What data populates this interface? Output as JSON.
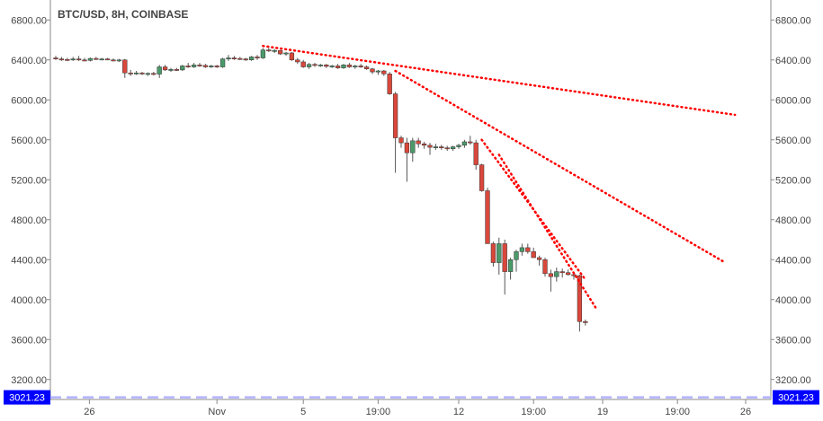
{
  "chart_data": {
    "type": "candlestick",
    "title": "BTC/USD, 8H, COINBASE",
    "ylim": [
      3000,
      7000
    ],
    "y_ticks": [
      "3200.00",
      "3600.00",
      "4000.00",
      "4400.00",
      "4800.00",
      "5200.00",
      "5600.00",
      "6000.00",
      "6400.00",
      "6800.00"
    ],
    "x_ticks": [
      "26",
      "Nov",
      "5",
      "19:00",
      "12",
      "19:00",
      "19",
      "19:00",
      "26"
    ],
    "candles": [
      {
        "o": 6420,
        "h": 6440,
        "l": 6400,
        "c": 6410
      },
      {
        "o": 6410,
        "h": 6430,
        "l": 6390,
        "c": 6405
      },
      {
        "o": 6405,
        "h": 6420,
        "l": 6390,
        "c": 6400
      },
      {
        "o": 6400,
        "h": 6430,
        "l": 6390,
        "c": 6410
      },
      {
        "o": 6410,
        "h": 6440,
        "l": 6390,
        "c": 6400
      },
      {
        "o": 6400,
        "h": 6420,
        "l": 6385,
        "c": 6395
      },
      {
        "o": 6395,
        "h": 6425,
        "l": 6385,
        "c": 6415
      },
      {
        "o": 6415,
        "h": 6430,
        "l": 6400,
        "c": 6405
      },
      {
        "o": 6405,
        "h": 6420,
        "l": 6395,
        "c": 6410
      },
      {
        "o": 6410,
        "h": 6420,
        "l": 6400,
        "c": 6400
      },
      {
        "o": 6400,
        "h": 6415,
        "l": 6385,
        "c": 6395
      },
      {
        "o": 6395,
        "h": 6410,
        "l": 6380,
        "c": 6400
      },
      {
        "o": 6400,
        "h": 6410,
        "l": 6220,
        "c": 6270
      },
      {
        "o": 6270,
        "h": 6300,
        "l": 6240,
        "c": 6265
      },
      {
        "o": 6265,
        "h": 6290,
        "l": 6250,
        "c": 6270
      },
      {
        "o": 6270,
        "h": 6280,
        "l": 6250,
        "c": 6260
      },
      {
        "o": 6260,
        "h": 6275,
        "l": 6240,
        "c": 6265
      },
      {
        "o": 6265,
        "h": 6280,
        "l": 6245,
        "c": 6258
      },
      {
        "o": 6258,
        "h": 6350,
        "l": 6220,
        "c": 6330
      },
      {
        "o": 6330,
        "h": 6350,
        "l": 6290,
        "c": 6300
      },
      {
        "o": 6300,
        "h": 6320,
        "l": 6280,
        "c": 6305
      },
      {
        "o": 6305,
        "h": 6320,
        "l": 6290,
        "c": 6300
      },
      {
        "o": 6300,
        "h": 6350,
        "l": 6290,
        "c": 6340
      },
      {
        "o": 6340,
        "h": 6370,
        "l": 6320,
        "c": 6330
      },
      {
        "o": 6330,
        "h": 6370,
        "l": 6320,
        "c": 6350
      },
      {
        "o": 6350,
        "h": 6370,
        "l": 6330,
        "c": 6345
      },
      {
        "o": 6345,
        "h": 6360,
        "l": 6320,
        "c": 6330
      },
      {
        "o": 6330,
        "h": 6350,
        "l": 6320,
        "c": 6340
      },
      {
        "o": 6340,
        "h": 6350,
        "l": 6320,
        "c": 6330
      },
      {
        "o": 6330,
        "h": 6420,
        "l": 6320,
        "c": 6410
      },
      {
        "o": 6410,
        "h": 6450,
        "l": 6390,
        "c": 6420
      },
      {
        "o": 6420,
        "h": 6440,
        "l": 6400,
        "c": 6415
      },
      {
        "o": 6415,
        "h": 6430,
        "l": 6400,
        "c": 6410
      },
      {
        "o": 6410,
        "h": 6420,
        "l": 6390,
        "c": 6400
      },
      {
        "o": 6400,
        "h": 6440,
        "l": 6390,
        "c": 6430
      },
      {
        "o": 6430,
        "h": 6450,
        "l": 6400,
        "c": 6420
      },
      {
        "o": 6420,
        "h": 6520,
        "l": 6410,
        "c": 6500
      },
      {
        "o": 6500,
        "h": 6520,
        "l": 6480,
        "c": 6490
      },
      {
        "o": 6490,
        "h": 6510,
        "l": 6470,
        "c": 6495
      },
      {
        "o": 6495,
        "h": 6500,
        "l": 6450,
        "c": 6460
      },
      {
        "o": 6460,
        "h": 6480,
        "l": 6440,
        "c": 6470
      },
      {
        "o": 6470,
        "h": 6480,
        "l": 6390,
        "c": 6400
      },
      {
        "o": 6400,
        "h": 6420,
        "l": 6360,
        "c": 6380
      },
      {
        "o": 6380,
        "h": 6400,
        "l": 6320,
        "c": 6330
      },
      {
        "o": 6330,
        "h": 6370,
        "l": 6310,
        "c": 6355
      },
      {
        "o": 6355,
        "h": 6370,
        "l": 6330,
        "c": 6345
      },
      {
        "o": 6345,
        "h": 6360,
        "l": 6330,
        "c": 6350
      },
      {
        "o": 6350,
        "h": 6360,
        "l": 6320,
        "c": 6335
      },
      {
        "o": 6335,
        "h": 6350,
        "l": 6320,
        "c": 6340
      },
      {
        "o": 6340,
        "h": 6360,
        "l": 6310,
        "c": 6320
      },
      {
        "o": 6320,
        "h": 6360,
        "l": 6310,
        "c": 6350
      },
      {
        "o": 6350,
        "h": 6370,
        "l": 6320,
        "c": 6330
      },
      {
        "o": 6330,
        "h": 6350,
        "l": 6310,
        "c": 6340
      },
      {
        "o": 6340,
        "h": 6360,
        "l": 6320,
        "c": 6330
      },
      {
        "o": 6330,
        "h": 6345,
        "l": 6300,
        "c": 6310
      },
      {
        "o": 6310,
        "h": 6320,
        "l": 6260,
        "c": 6280
      },
      {
        "o": 6280,
        "h": 6300,
        "l": 6250,
        "c": 6290
      },
      {
        "o": 6290,
        "h": 6300,
        "l": 6240,
        "c": 6260
      },
      {
        "o": 6260,
        "h": 6280,
        "l": 6050,
        "c": 6060
      },
      {
        "o": 6060,
        "h": 6080,
        "l": 5270,
        "c": 5620
      },
      {
        "o": 5620,
        "h": 5640,
        "l": 5520,
        "c": 5570
      },
      {
        "o": 5570,
        "h": 5620,
        "l": 5180,
        "c": 5470
      },
      {
        "o": 5470,
        "h": 5620,
        "l": 5380,
        "c": 5590
      },
      {
        "o": 5590,
        "h": 5620,
        "l": 5520,
        "c": 5560
      },
      {
        "o": 5560,
        "h": 5580,
        "l": 5510,
        "c": 5545
      },
      {
        "o": 5545,
        "h": 5570,
        "l": 5450,
        "c": 5525
      },
      {
        "o": 5525,
        "h": 5560,
        "l": 5500,
        "c": 5530
      },
      {
        "o": 5530,
        "h": 5550,
        "l": 5500,
        "c": 5520
      },
      {
        "o": 5520,
        "h": 5540,
        "l": 5490,
        "c": 5510
      },
      {
        "o": 5510,
        "h": 5540,
        "l": 5490,
        "c": 5530
      },
      {
        "o": 5530,
        "h": 5560,
        "l": 5510,
        "c": 5545
      },
      {
        "o": 5545,
        "h": 5600,
        "l": 5520,
        "c": 5580
      },
      {
        "o": 5580,
        "h": 5640,
        "l": 5550,
        "c": 5570
      },
      {
        "o": 5570,
        "h": 5600,
        "l": 5300,
        "c": 5350
      },
      {
        "o": 5350,
        "h": 5360,
        "l": 5080,
        "c": 5090
      },
      {
        "o": 5090,
        "h": 5120,
        "l": 4560,
        "c": 4560
      },
      {
        "o": 4560,
        "h": 4580,
        "l": 4330,
        "c": 4370
      },
      {
        "o": 4370,
        "h": 4620,
        "l": 4250,
        "c": 4560
      },
      {
        "o": 4560,
        "h": 4600,
        "l": 4050,
        "c": 4280
      },
      {
        "o": 4280,
        "h": 4420,
        "l": 4200,
        "c": 4400
      },
      {
        "o": 4400,
        "h": 4500,
        "l": 4280,
        "c": 4480
      },
      {
        "o": 4480,
        "h": 4560,
        "l": 4440,
        "c": 4520
      },
      {
        "o": 4520,
        "h": 4560,
        "l": 4460,
        "c": 4480
      },
      {
        "o": 4480,
        "h": 4520,
        "l": 4430,
        "c": 4420
      },
      {
        "o": 4420,
        "h": 4440,
        "l": 4340,
        "c": 4400
      },
      {
        "o": 4400,
        "h": 4420,
        "l": 4230,
        "c": 4260
      },
      {
        "o": 4260,
        "h": 4300,
        "l": 4080,
        "c": 4230
      },
      {
        "o": 4230,
        "h": 4320,
        "l": 4180,
        "c": 4280
      },
      {
        "o": 4280,
        "h": 4310,
        "l": 4220,
        "c": 4270
      },
      {
        "o": 4270,
        "h": 4300,
        "l": 4240,
        "c": 4250
      },
      {
        "o": 4250,
        "h": 4280,
        "l": 4200,
        "c": 4240
      },
      {
        "o": 4240,
        "h": 4250,
        "l": 3680,
        "c": 3780
      },
      {
        "o": 3780,
        "h": 3800,
        "l": 3740,
        "c": 3770
      }
    ],
    "trendlines": [
      {
        "from": {
          "i": 36,
          "price": 6540
        },
        "to": {
          "i": 118,
          "price": 5850
        },
        "color": "#ff0000",
        "style": "dotted"
      },
      {
        "from": {
          "i": 59,
          "price": 6290
        },
        "to": {
          "i": 116,
          "price": 4380
        },
        "color": "#ff0000",
        "style": "dotted"
      },
      {
        "from": {
          "i": 74,
          "price": 5600
        },
        "to": {
          "i": 92,
          "price": 4200
        },
        "color": "#ff0000",
        "style": "dotted"
      },
      {
        "from": {
          "i": 77,
          "price": 5450
        },
        "to": {
          "i": 94,
          "price": 3900
        },
        "color": "#ff0000",
        "style": "dotted"
      }
    ],
    "horizontal_line": {
      "price": 3021.23,
      "label": "3021.23",
      "color": "#b3b3ff",
      "style": "dashed"
    },
    "price_badge_color": "#0000ff",
    "colors": {
      "up_body": "#4b9a6a",
      "down_body": "#d9483b",
      "wick": "#555555",
      "axis": "#888888"
    }
  }
}
